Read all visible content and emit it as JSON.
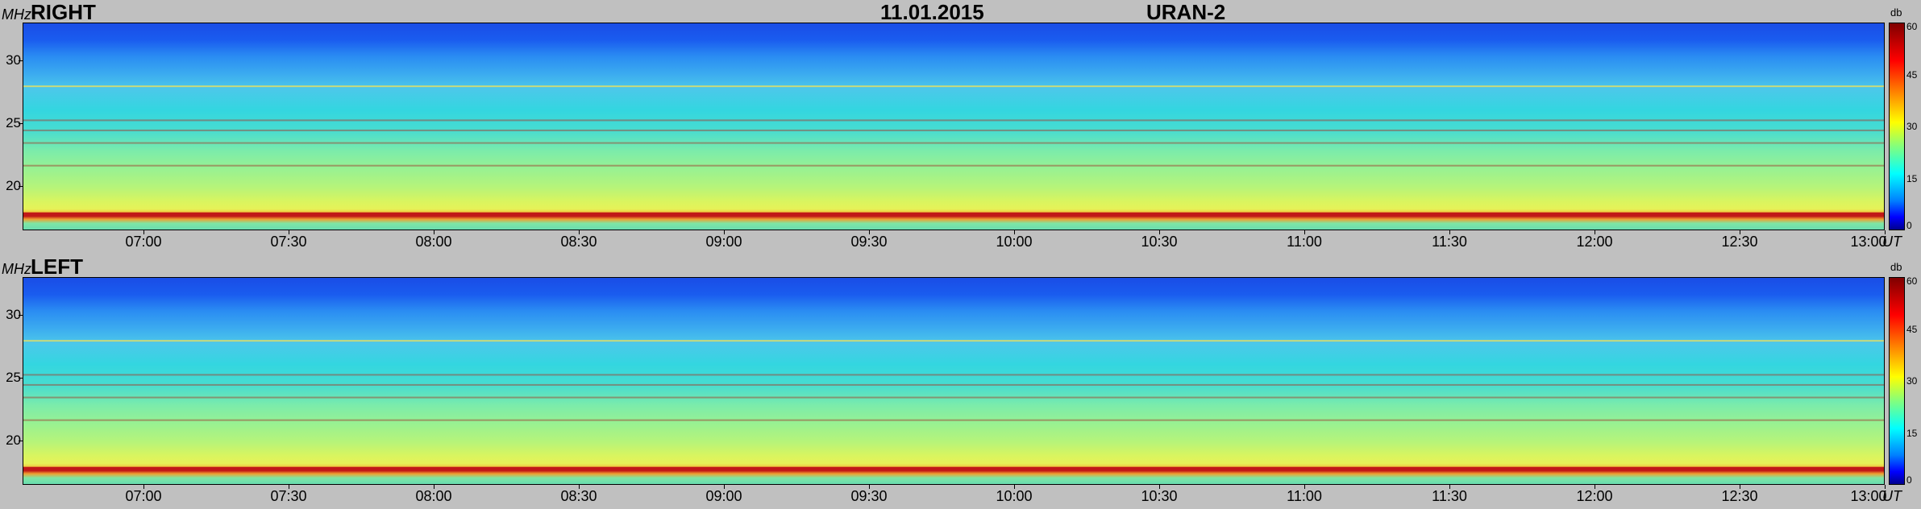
{
  "header": {
    "date": "11.01.2015",
    "instrument": "URAN-2"
  },
  "panels": [
    {
      "label": "RIGHT",
      "y_unit": "MHz",
      "x_unit_suffix": "UT",
      "colorbar": {
        "unit": "db",
        "ticks": [
          "60",
          "45",
          "30",
          "15",
          "0"
        ]
      }
    },
    {
      "label": "LEFT",
      "y_unit": "MHz",
      "x_unit_suffix": "UT",
      "colorbar": {
        "unit": "db",
        "ticks": [
          "60",
          "45",
          "30",
          "15",
          "0"
        ]
      }
    }
  ],
  "chart_data": [
    {
      "type": "heatmap",
      "title": "RIGHT",
      "ylabel": "MHz",
      "x_ticks": [
        "07:00",
        "07:30",
        "08:00",
        "08:30",
        "09:00",
        "09:30",
        "10:00",
        "10:30",
        "11:00",
        "11:30",
        "12:00",
        "12:30",
        "13:00"
      ],
      "y_ticks": [
        30,
        25,
        20
      ],
      "xlim": [
        "06:35",
        "13:00"
      ],
      "ylim": [
        16.5,
        33
      ],
      "color_scale": {
        "unit": "db",
        "range": [
          0,
          60
        ],
        "ticks": [
          0,
          15,
          30,
          45,
          60
        ]
      },
      "features": {
        "strong_line_freq_mhz": 17.8,
        "interference_lines_mhz": [
          28.0,
          25.3,
          23.5,
          24.5,
          21.7
        ]
      }
    },
    {
      "type": "heatmap",
      "title": "LEFT",
      "ylabel": "MHz",
      "x_ticks": [
        "07:00",
        "07:30",
        "08:00",
        "08:30",
        "09:00",
        "09:30",
        "10:00",
        "10:30",
        "11:00",
        "11:30",
        "12:00",
        "12:30",
        "13:00"
      ],
      "y_ticks": [
        30,
        25,
        20
      ],
      "xlim": [
        "06:35",
        "13:00"
      ],
      "ylim": [
        16.5,
        33
      ],
      "color_scale": {
        "unit": "db",
        "range": [
          0,
          60
        ],
        "ticks": [
          0,
          15,
          30,
          45,
          60
        ]
      },
      "features": {
        "strong_line_freq_mhz": 17.8,
        "interference_lines_mhz": [
          28.0,
          25.3,
          23.5,
          24.5,
          21.7
        ]
      }
    }
  ],
  "colors": {
    "background": "#c0c0c0",
    "strong_line": "#c01818"
  }
}
